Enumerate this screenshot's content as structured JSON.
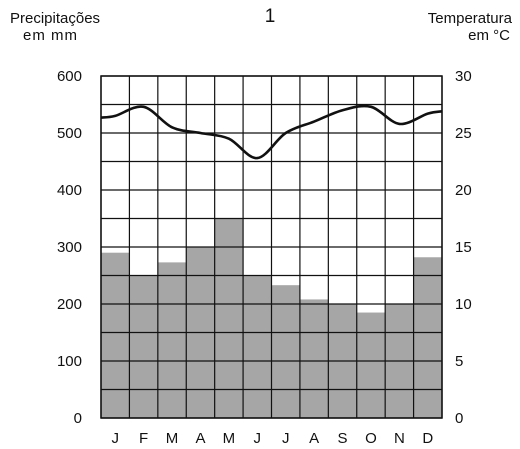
{
  "chart_data": {
    "type": "bar",
    "title": "1",
    "left_axis": {
      "label_line1": "Precipitações",
      "label_line2": "em mm",
      "range": [
        0,
        600
      ],
      "ticks": [
        0,
        100,
        200,
        300,
        400,
        500,
        600
      ]
    },
    "right_axis": {
      "label_line1": "Temperatura",
      "label_line2": "em °C",
      "range": [
        0,
        30
      ],
      "ticks": [
        0,
        5,
        10,
        15,
        20,
        25,
        30
      ]
    },
    "categories": [
      "J",
      "F",
      "M",
      "A",
      "M",
      "J",
      "J",
      "A",
      "S",
      "O",
      "N",
      "D"
    ],
    "series": [
      {
        "type": "bar",
        "axis": "left",
        "values": [
          290,
          250,
          273,
          300,
          350,
          250,
          233,
          208,
          200,
          185,
          200,
          282
        ],
        "color": "#a6a6a6"
      },
      {
        "type": "line",
        "axis": "right",
        "values": [
          26.5,
          27.3,
          25.5,
          25.0,
          24.5,
          22.8,
          25.0,
          26.0,
          27.0,
          27.3,
          25.8,
          26.7
        ],
        "color": "#111111"
      }
    ],
    "grid": true
  }
}
